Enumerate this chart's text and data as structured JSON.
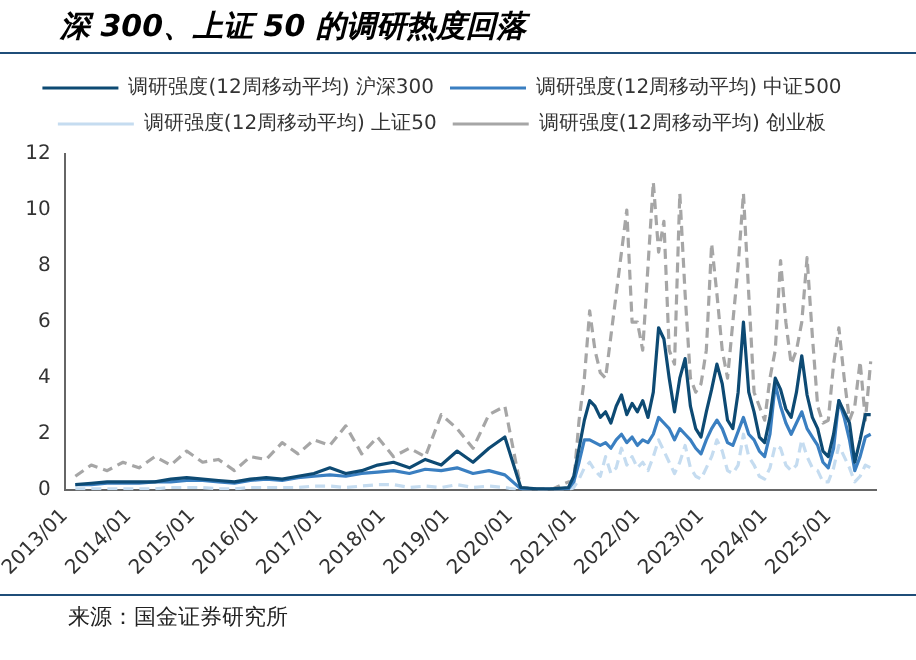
{
  "chart_data": {
    "type": "line",
    "title": "深 300、上证 50 的调研热度回落",
    "annotations": [
      "来源：国金证券研究所"
    ],
    "x": [
      "2013-03",
      "2013-06",
      "2013-09",
      "2013-12",
      "2014-03",
      "2014-06",
      "2014-09",
      "2014-12",
      "2015-03",
      "2015-06",
      "2015-09",
      "2015-12",
      "2016-03",
      "2016-06",
      "2016-09",
      "2016-12",
      "2017-03",
      "2017-06",
      "2017-09",
      "2017-12",
      "2018-03",
      "2018-06",
      "2018-09",
      "2018-12",
      "2019-03",
      "2019-06",
      "2019-09",
      "2019-12",
      "2020-03",
      "2020-06",
      "2020-09",
      "2020-12",
      "2021-01",
      "2021-02",
      "2021-03",
      "2021-04",
      "2021-05",
      "2021-06",
      "2021-07",
      "2021-08",
      "2021-09",
      "2021-10",
      "2021-11",
      "2021-12",
      "2022-01",
      "2022-02",
      "2022-03",
      "2022-04",
      "2022-05",
      "2022-06",
      "2022-07",
      "2022-08",
      "2022-09",
      "2022-10",
      "2022-11",
      "2022-12",
      "2023-01",
      "2023-02",
      "2023-03",
      "2023-04",
      "2023-05",
      "2023-06",
      "2023-07",
      "2023-08",
      "2023-09",
      "2023-10",
      "2023-11",
      "2023-12",
      "2024-01",
      "2024-02",
      "2024-03",
      "2024-04",
      "2024-05",
      "2024-06",
      "2024-07",
      "2024-08",
      "2024-09",
      "2024-10",
      "2024-11",
      "2024-12",
      "2025-01",
      "2025-02",
      "2025-03",
      "2025-04",
      "2025-05",
      "2025-06",
      "2025-07",
      "2025-08",
      "2025-09"
    ],
    "series": [
      {
        "name": "调研强度(12周移动平均) 沪深300",
        "color": "#0d4a73",
        "values": [
          0.2,
          0.25,
          0.3,
          0.3,
          0.3,
          0.3,
          0.4,
          0.45,
          0.4,
          0.35,
          0.3,
          0.4,
          0.45,
          0.4,
          0.5,
          0.6,
          0.8,
          0.6,
          0.7,
          0.9,
          1.0,
          0.8,
          1.1,
          0.9,
          1.4,
          1.0,
          1.5,
          1.9,
          0.1,
          0.05,
          0.05,
          0.1,
          0.5,
          1.5,
          2.5,
          3.2,
          3.0,
          2.6,
          2.8,
          2.4,
          3.0,
          3.4,
          2.7,
          3.1,
          2.8,
          3.2,
          2.6,
          3.5,
          5.8,
          5.4,
          4.0,
          2.8,
          4.0,
          4.7,
          3.0,
          2.2,
          1.9,
          2.8,
          3.6,
          4.5,
          3.8,
          2.5,
          2.2,
          3.5,
          6.0,
          3.5,
          2.8,
          1.9,
          1.7,
          2.6,
          4.0,
          3.6,
          2.9,
          2.6,
          3.5,
          4.8,
          3.4,
          2.6,
          2.2,
          1.4,
          1.2,
          2.0,
          3.2,
          2.8,
          2.4,
          1.0,
          1.8,
          2.7,
          2.7
        ]
      },
      {
        "name": "调研强度(12周移动平均) 中证500",
        "color": "#3a7fc1",
        "values": [
          0.2,
          0.2,
          0.25,
          0.25,
          0.25,
          0.3,
          0.3,
          0.35,
          0.35,
          0.3,
          0.25,
          0.35,
          0.4,
          0.35,
          0.45,
          0.5,
          0.55,
          0.5,
          0.6,
          0.65,
          0.7,
          0.6,
          0.75,
          0.7,
          0.8,
          0.6,
          0.7,
          0.55,
          0.05,
          0.03,
          0.03,
          0.05,
          0.3,
          1.0,
          1.8,
          1.8,
          1.7,
          1.6,
          1.7,
          1.5,
          1.8,
          2.0,
          1.7,
          1.9,
          1.6,
          1.8,
          1.7,
          2.0,
          2.6,
          2.4,
          2.2,
          1.8,
          2.2,
          2.0,
          1.8,
          1.5,
          1.3,
          1.8,
          2.2,
          2.5,
          2.2,
          1.7,
          1.6,
          2.1,
          2.6,
          2.0,
          1.8,
          1.4,
          1.2,
          2.0,
          3.8,
          3.0,
          2.4,
          2.0,
          2.4,
          2.8,
          2.2,
          1.9,
          1.6,
          1.0,
          0.8,
          1.5,
          3.2,
          2.6,
          1.8,
          0.7,
          1.2,
          1.9,
          2.0
        ]
      },
      {
        "name": "调研强度(12周移动平均) 上证50",
        "color": "#c5dcf0",
        "line_style": "dashed",
        "values": [
          0.05,
          0.05,
          0.05,
          0.05,
          0.05,
          0.05,
          0.1,
          0.1,
          0.1,
          0.05,
          0.05,
          0.1,
          0.1,
          0.1,
          0.1,
          0.15,
          0.15,
          0.1,
          0.15,
          0.2,
          0.2,
          0.1,
          0.15,
          0.1,
          0.2,
          0.1,
          0.15,
          0.1,
          0,
          0,
          0,
          0,
          0.1,
          0.4,
          0.8,
          1.0,
          0.7,
          0.5,
          1.2,
          0.6,
          0.8,
          1.5,
          0.9,
          1.2,
          0.8,
          1.0,
          0.7,
          1.2,
          1.8,
          1.4,
          1.0,
          0.6,
          1.0,
          1.6,
          0.8,
          0.5,
          0.4,
          0.8,
          1.2,
          1.8,
          1.4,
          0.7,
          0.6,
          0.9,
          2.0,
          1.2,
          0.9,
          0.5,
          0.4,
          0.8,
          1.6,
          1.5,
          0.9,
          0.7,
          0.9,
          1.8,
          1.2,
          0.8,
          0.7,
          0.3,
          0.3,
          0.8,
          1.6,
          1.2,
          0.8,
          0.3,
          0.5,
          0.9,
          0.8
        ]
      },
      {
        "name": "调研强度(12周移动平均) 创业板",
        "color": "#a6a6a6",
        "line_style": "dashed",
        "values": [
          0.5,
          0.9,
          0.7,
          1.0,
          0.8,
          1.2,
          0.9,
          1.4,
          1.0,
          1.1,
          0.7,
          1.2,
          1.1,
          1.7,
          1.3,
          1.8,
          1.6,
          2.3,
          1.3,
          1.9,
          1.2,
          1.5,
          1.2,
          2.7,
          2.2,
          1.5,
          2.7,
          3.0,
          0.1,
          0.05,
          0.05,
          0.3,
          0.3,
          2.5,
          4.0,
          6.4,
          5.0,
          4.2,
          4.0,
          5.5,
          7.0,
          8.5,
          10.0,
          6.0,
          6.0,
          5.0,
          8.0,
          11.0,
          8.5,
          9.6,
          5.0,
          4.5,
          10.6,
          7.0,
          4.0,
          3.5,
          3.8,
          5.0,
          8.8,
          7.0,
          5.0,
          4.0,
          6.0,
          8.0,
          10.6,
          7.0,
          3.5,
          3.0,
          2.5,
          4.0,
          5.0,
          8.2,
          6.0,
          4.5,
          5.0,
          6.0,
          8.3,
          5.5,
          3.0,
          2.4,
          2.5,
          4.5,
          5.8,
          4.0,
          2.5,
          3.0,
          4.6,
          2.5,
          4.6
        ]
      }
    ],
    "xlim": [
      "2013-01",
      "2025-10"
    ],
    "xticks": [
      {
        "value": "2013-01",
        "label": "2013/01"
      },
      {
        "value": "2014-01",
        "label": "2014/01"
      },
      {
        "value": "2015-01",
        "label": "2015/01"
      },
      {
        "value": "2016-01",
        "label": "2016/01"
      },
      {
        "value": "2017-01",
        "label": "2017/01"
      },
      {
        "value": "2018-01",
        "label": "2018/01"
      },
      {
        "value": "2019-01",
        "label": "2019/01"
      },
      {
        "value": "2020-01",
        "label": "2020/01"
      },
      {
        "value": "2021-01",
        "label": "2021/01"
      },
      {
        "value": "2022-01",
        "label": "2022/01"
      },
      {
        "value": "2023-01",
        "label": "2023/01"
      },
      {
        "value": "2024-01",
        "label": "2024/01"
      },
      {
        "value": "2025-01",
        "label": "2025/01"
      }
    ],
    "ylim": [
      0,
      12
    ],
    "yticks": [
      0,
      2,
      4,
      6,
      8,
      10,
      12
    ],
    "grid": false,
    "legend": "top",
    "marker": "none",
    "line_style": "solid"
  }
}
